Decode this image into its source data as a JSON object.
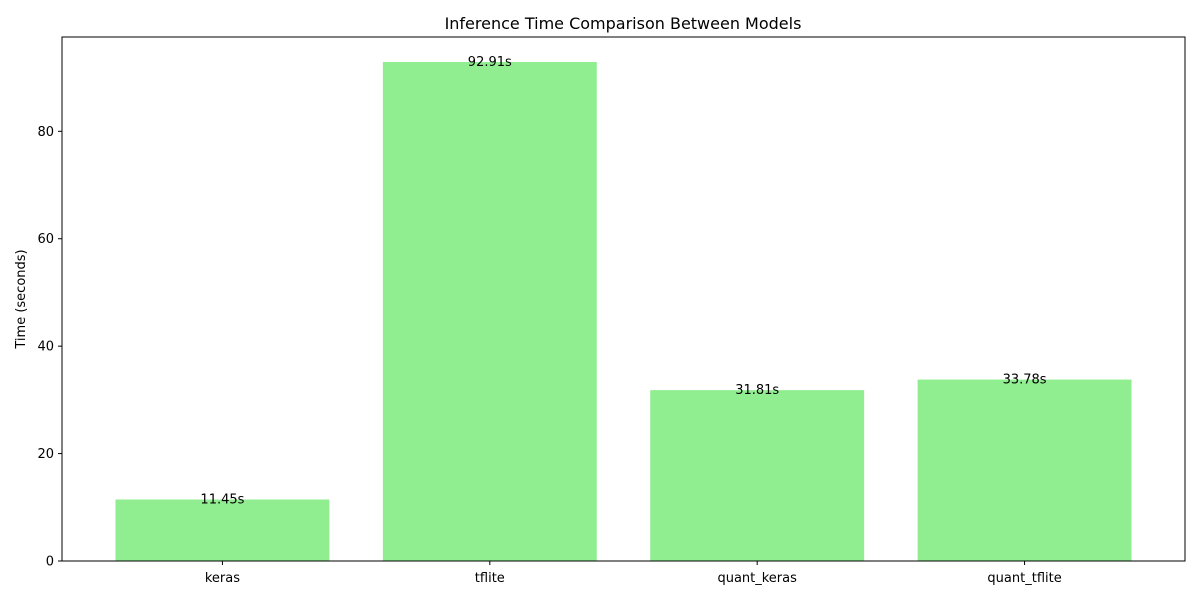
{
  "chart_data": {
    "type": "bar",
    "title": "Inference Time Comparison Between Models",
    "xlabel": "",
    "ylabel": "Time (seconds)",
    "categories": [
      "keras",
      "tflite",
      "quant_keras",
      "quant_tflite"
    ],
    "values": [
      11.45,
      92.91,
      31.81,
      33.78
    ],
    "value_labels": [
      "11.45s",
      "92.91s",
      "31.81s",
      "33.78s"
    ],
    "ylim": [
      0,
      97.56
    ],
    "yticks": [
      0,
      20,
      40,
      60,
      80
    ],
    "ytick_labels": [
      "0",
      "20",
      "40",
      "60",
      "80"
    ],
    "grid": false,
    "legend": "none",
    "bar_color": "#90ee90"
  }
}
